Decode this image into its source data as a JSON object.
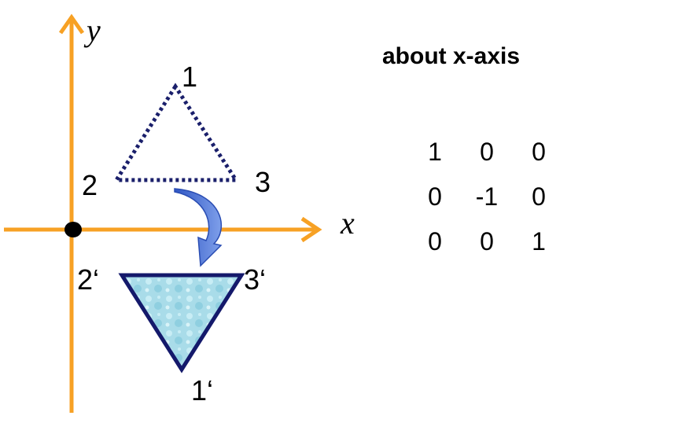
{
  "title": "about x-axis",
  "axes": {
    "x_label": "x",
    "y_label": "y",
    "color": "#F7A124"
  },
  "original_triangle": {
    "vertex_labels": [
      "1",
      "2",
      "3"
    ],
    "color": "#1A1F6B",
    "style": "dotted"
  },
  "reflected_triangle": {
    "vertex_labels": [
      "1‘",
      "2‘",
      "3‘"
    ],
    "outline_color": "#14196B",
    "fill_color": "#A9DCE9"
  },
  "arrow_color": "#4A72D9",
  "matrix": [
    [
      "1",
      "0",
      "0"
    ],
    [
      "0",
      "-1",
      "0"
    ],
    [
      "0",
      "0",
      "1"
    ]
  ]
}
